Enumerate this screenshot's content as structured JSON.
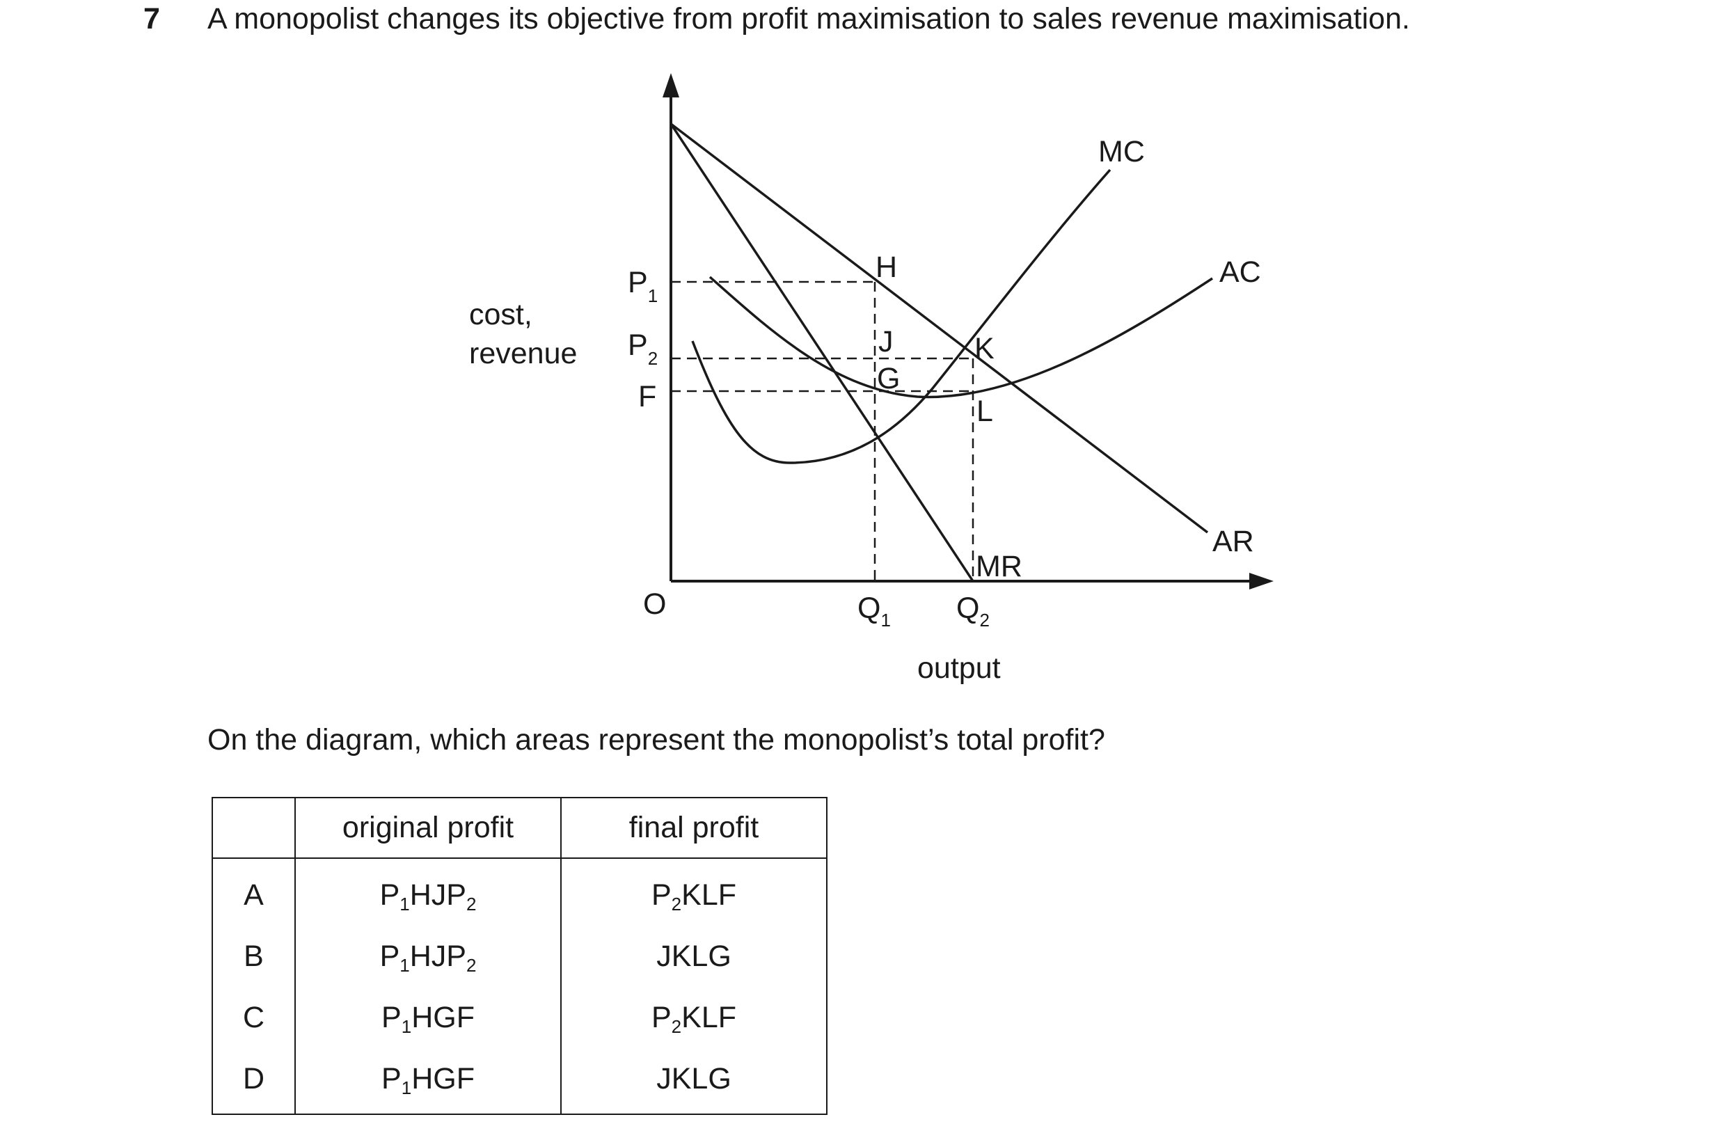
{
  "question": {
    "number": "7",
    "text": "A monopolist changes its objective from profit maximisation to sales revenue maximisation.",
    "prompt": "On the diagram, which areas represent the monopolist’s total profit?"
  },
  "diagram": {
    "y_axis_label_line1": "cost,",
    "y_axis_label_line2": "revenue",
    "x_axis_label": "output",
    "origin_label": "O",
    "price_labels": [
      {
        "main": "P",
        "sub": "1"
      },
      {
        "main": "P",
        "sub": "2"
      },
      {
        "main": "F",
        "sub": ""
      }
    ],
    "quantity_labels": [
      {
        "main": "Q",
        "sub": "1"
      },
      {
        "main": "Q",
        "sub": "2"
      }
    ],
    "curve_labels": {
      "mc": "MC",
      "ac": "AC",
      "ar": "AR",
      "mr": "MR"
    },
    "point_labels": {
      "h": "H",
      "j": "J",
      "g": "G",
      "k": "K",
      "l": "L"
    }
  },
  "table": {
    "headers": [
      "",
      "original profit",
      "final profit"
    ],
    "rows": [
      {
        "option": "A",
        "original": {
          "parts": [
            [
              "P",
              "1"
            ],
            [
              "HJP",
              "2"
            ]
          ]
        },
        "final": {
          "parts": [
            [
              "P",
              "2"
            ],
            [
              "KLF",
              ""
            ]
          ]
        }
      },
      {
        "option": "B",
        "original": {
          "parts": [
            [
              "P",
              "1"
            ],
            [
              "HJP",
              "2"
            ]
          ]
        },
        "final": {
          "parts": [
            [
              "JKLG",
              ""
            ]
          ]
        }
      },
      {
        "option": "C",
        "original": {
          "parts": [
            [
              "P",
              "1"
            ],
            [
              "HGF",
              ""
            ]
          ]
        },
        "final": {
          "parts": [
            [
              "P",
              "2"
            ],
            [
              "KLF",
              ""
            ]
          ]
        }
      },
      {
        "option": "D",
        "original": {
          "parts": [
            [
              "P",
              "1"
            ],
            [
              "HGF",
              ""
            ]
          ]
        },
        "final": {
          "parts": [
            [
              "JKLG",
              ""
            ]
          ]
        }
      }
    ]
  }
}
